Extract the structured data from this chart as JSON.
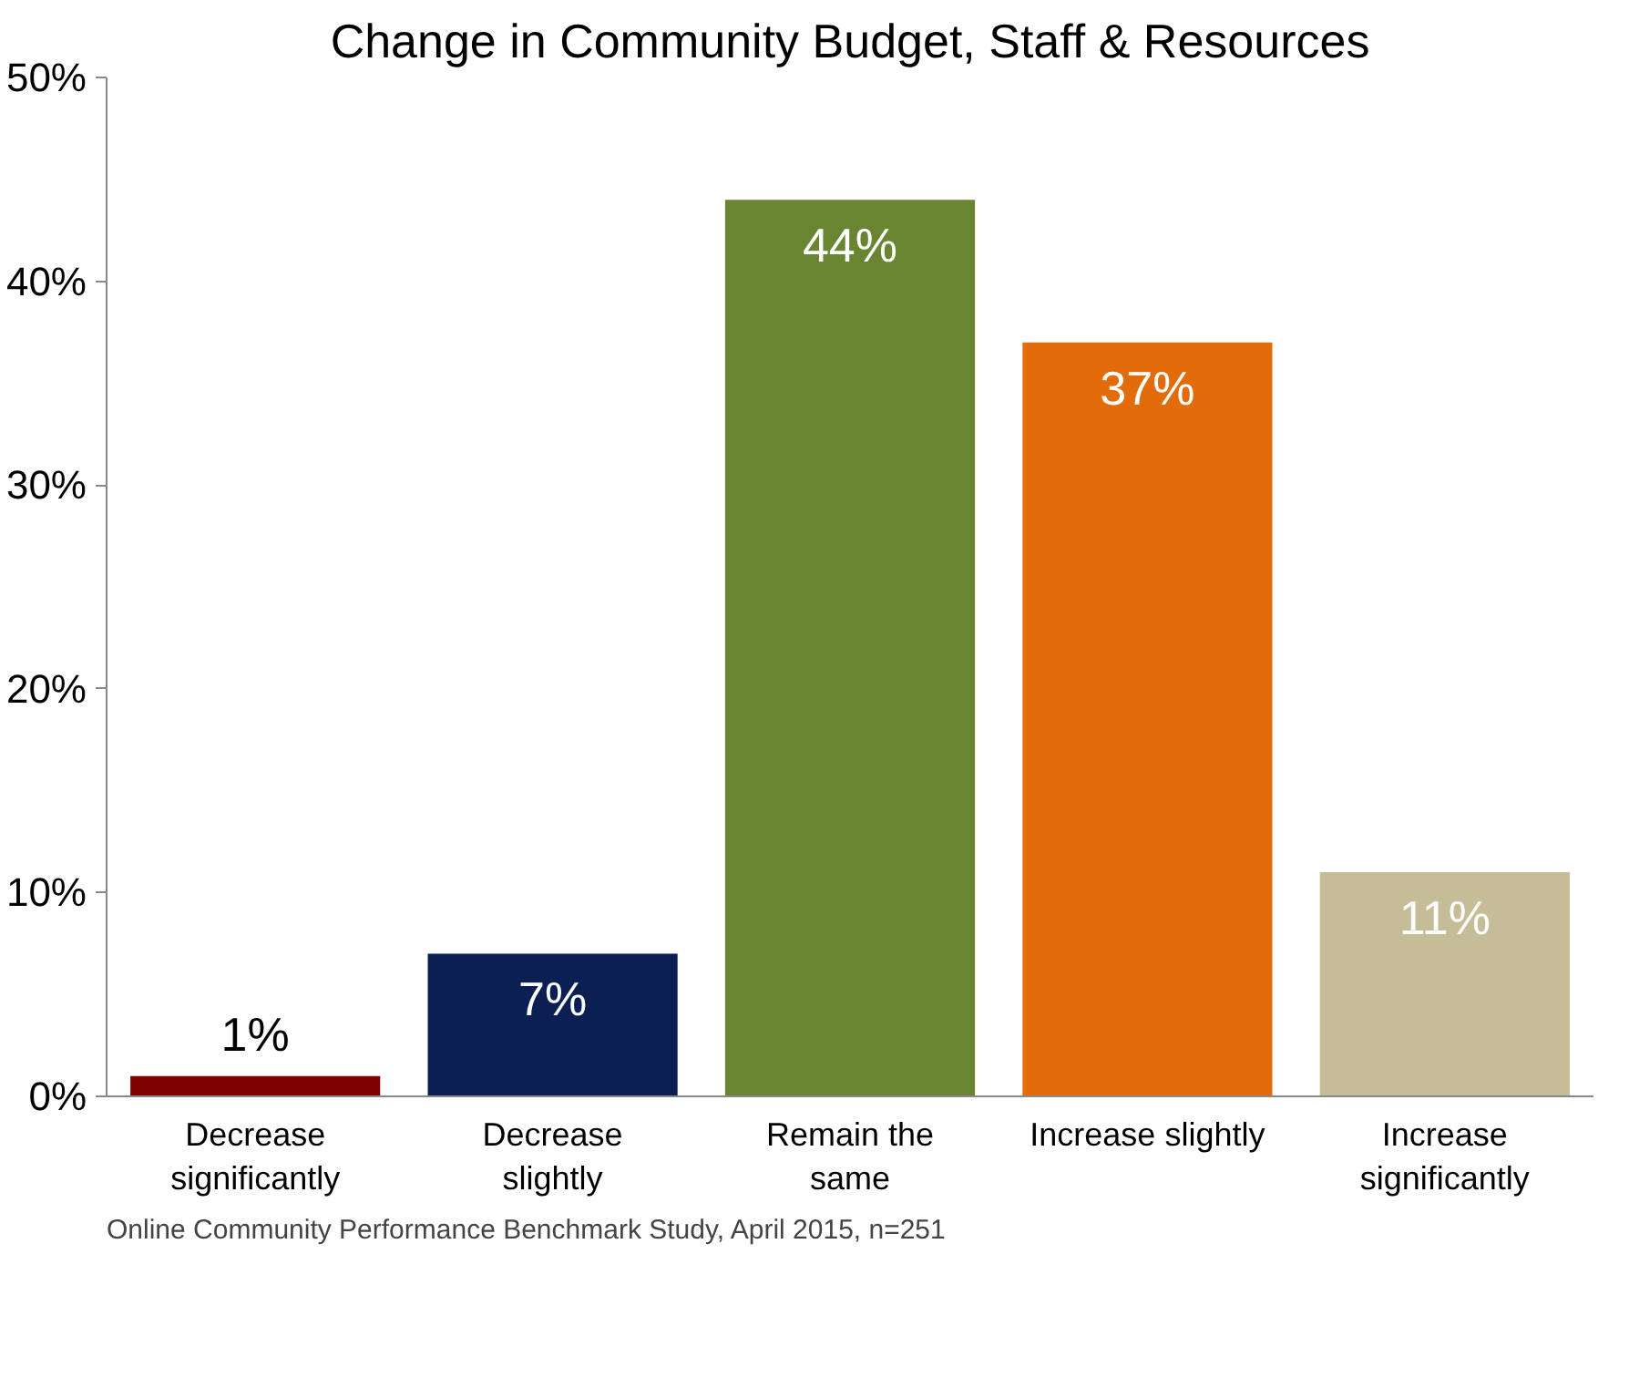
{
  "chart_data": {
    "type": "bar",
    "title": "Change in Community Budget, Staff & Resources",
    "categories": [
      "Decrease\nsignificantly",
      "Decrease\nslightly",
      "Remain the\nsame",
      "Increase slightly",
      "Increase\nsignificantly"
    ],
    "values": [
      1,
      7,
      44,
      37,
      11
    ],
    "colors": [
      "#7f0000",
      "#0c1f52",
      "#6a8532",
      "#e36c0a",
      "#c4bd97"
    ],
    "value_labels": [
      "1%",
      "7%",
      "44%",
      "37%",
      "11%"
    ],
    "ylim": [
      0,
      50
    ],
    "yticks": [
      {
        "value": 0,
        "label": "0%"
      },
      {
        "value": 10,
        "label": "10%"
      },
      {
        "value": 20,
        "label": "20%"
      },
      {
        "value": 30,
        "label": "30%"
      },
      {
        "value": 40,
        "label": "40%"
      },
      {
        "value": 50,
        "label": "50%"
      }
    ],
    "grid": false,
    "annotations": [
      "Online Community Performance Benchmark Study, April 2015, n=251"
    ]
  }
}
